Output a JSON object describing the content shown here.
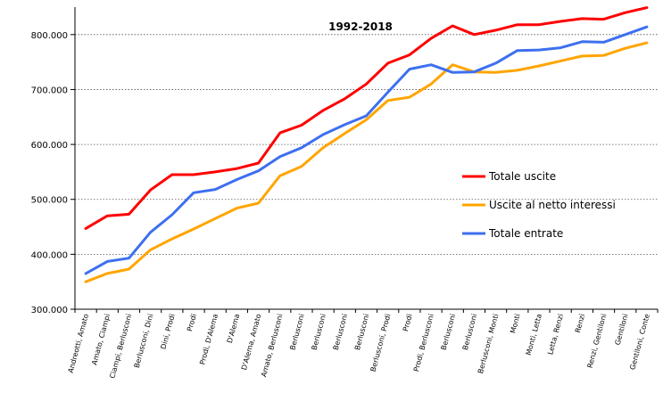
{
  "chart_data": {
    "type": "line",
    "title": "1992-2018",
    "xlabel": "",
    "ylabel": "",
    "ylim": [
      300000,
      850000
    ],
    "yticks": [
      {
        "value": 300000,
        "label": "300.000"
      },
      {
        "value": 400000,
        "label": "400.000"
      },
      {
        "value": 500000,
        "label": "500.000"
      },
      {
        "value": 600000,
        "label": "600.000"
      },
      {
        "value": 700000,
        "label": "700.000"
      },
      {
        "value": 800000,
        "label": "800.000"
      }
    ],
    "grid": true,
    "legend_position": "right",
    "categories": [
      "Andreotti, Amato",
      "Amato, Ciampi",
      "Ciampi, Berlusconi",
      "Berlusconi, Dini",
      "Dini, Prodi",
      "Prodi",
      "Prodi, D'Alema",
      "D'Alema",
      "D'Alema, Amato",
      "Amato, Berlusconi",
      "Berlusconi",
      "Berlusconi",
      "Berlusconi",
      "Berlusconi",
      "Berlusconi, Prodi",
      "Prodi",
      "Prodi, Berlusconi",
      "Berlusconi",
      "Berlusconi",
      "Berlusconi, Monti",
      "Monti",
      "Monti, Letta",
      "Letta, Renzi",
      "Renzi",
      "Renzi, Gentiloni",
      "Gentiloni",
      "Gentiloni, Conte"
    ],
    "series": [
      {
        "name": "Totale uscite",
        "color": "#ff0000",
        "values": [
          447000,
          470000,
          473000,
          517000,
          545000,
          545000,
          550000,
          556000,
          566000,
          621000,
          635000,
          662000,
          683000,
          710000,
          748000,
          763000,
          793000,
          816000,
          800000,
          808000,
          818000,
          818000,
          824000,
          829000,
          828000,
          840000,
          849000
        ]
      },
      {
        "name": "Uscite al netto interessi",
        "color": "#ffa500",
        "values": [
          350000,
          365000,
          373000,
          408000,
          428000,
          446000,
          465000,
          484000,
          493000,
          543000,
          560000,
          594000,
          620000,
          645000,
          680000,
          686000,
          710000,
          745000,
          732000,
          731000,
          735000,
          743000,
          752000,
          761000,
          762000,
          775000,
          785000
        ]
      },
      {
        "name": "Totale entrate",
        "color": "#3d6ff0",
        "values": [
          365000,
          387000,
          393000,
          440000,
          472000,
          512000,
          518000,
          536000,
          552000,
          578000,
          594000,
          618000,
          636000,
          652000,
          695000,
          737000,
          745000,
          731000,
          732000,
          748000,
          771000,
          772000,
          776000,
          787000,
          786000,
          800000,
          814000
        ]
      }
    ]
  }
}
